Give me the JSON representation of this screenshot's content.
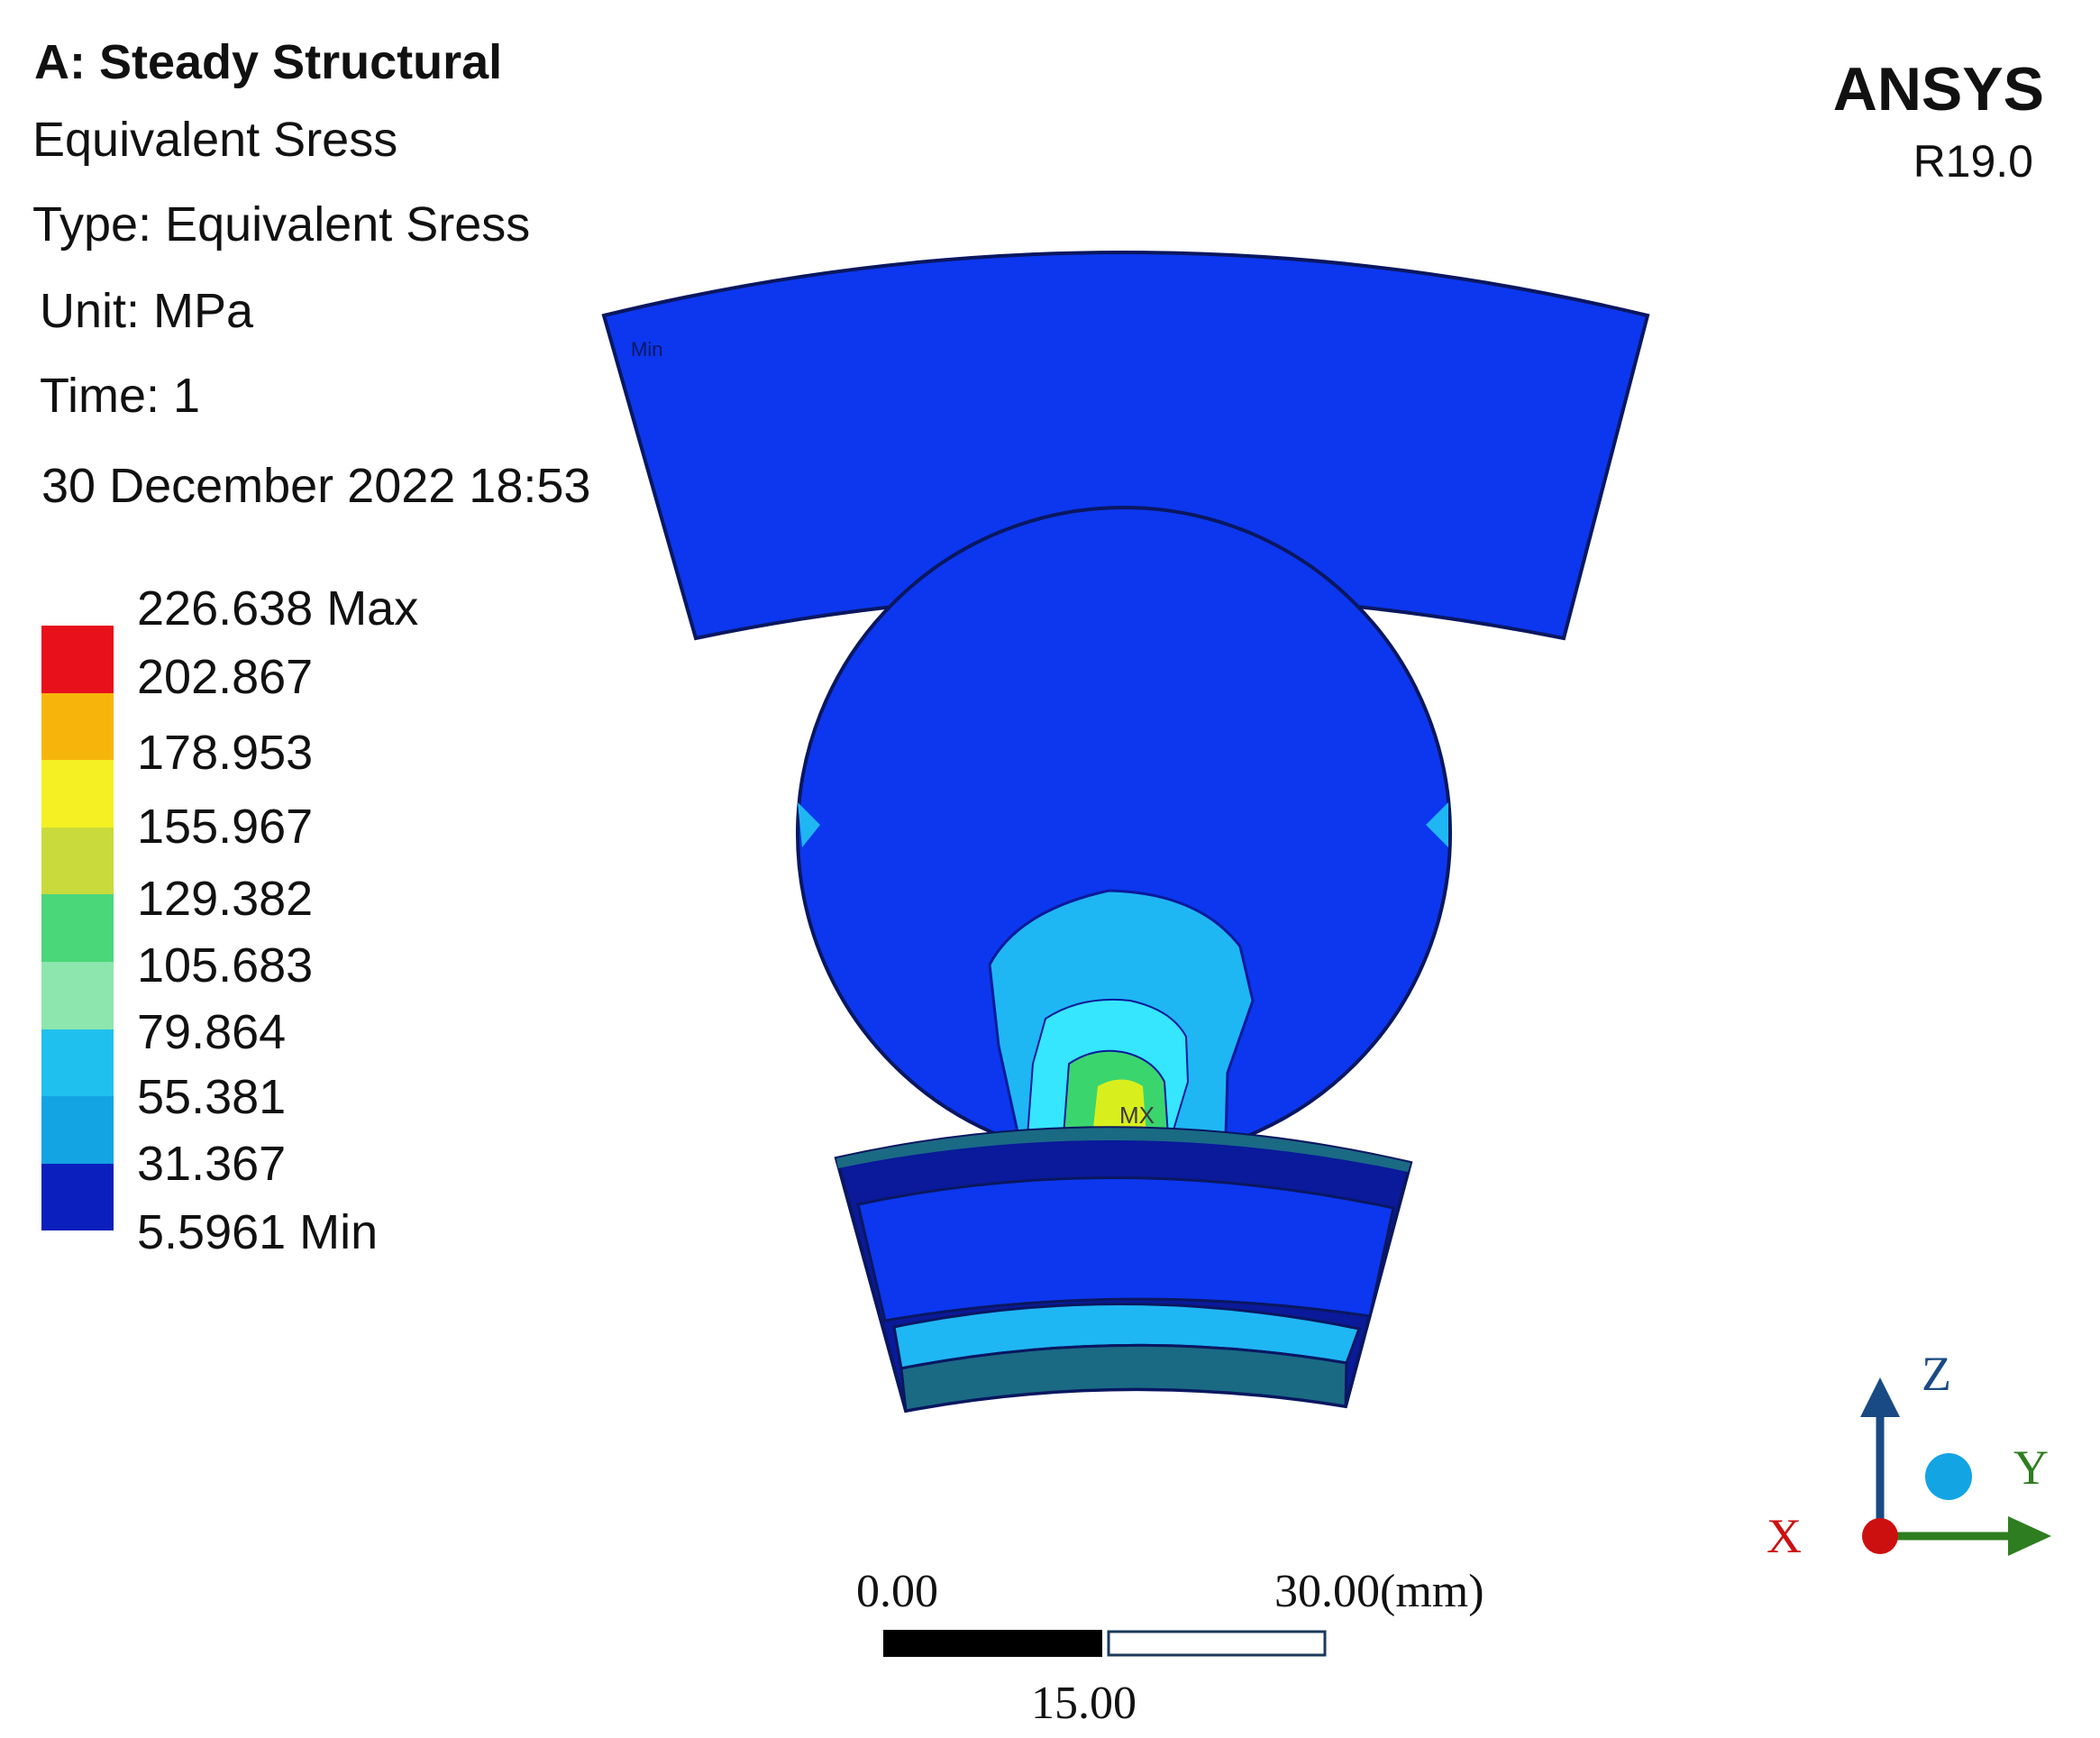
{
  "header": {
    "analysis_title": "A: Steady Structural",
    "result_name": "Equivalent Sress",
    "result_type": "Type: Equivalent Sress",
    "unit": "Unit: MPa",
    "time": "Time: 1",
    "date": "30 December 2022 18:53"
  },
  "branding": {
    "product": "ANSYS",
    "version": "R19.0"
  },
  "legend": {
    "labels": [
      "226.638 Max",
      "202.867",
      "178.953",
      "155.967",
      "129.382",
      "105.683",
      "79.864",
      "55.381",
      "31.367",
      "5.5961 Min"
    ],
    "colors": [
      "#e8101a",
      "#f7b50c",
      "#f4f023",
      "#c9db3c",
      "#4ad77a",
      "#8ce6ad",
      "#20c0ee",
      "#13a4e4",
      "#0a1fbd"
    ]
  },
  "model": {
    "min_marker": "Min",
    "max_marker": "MX",
    "colors": {
      "part_base": "#0c37ee",
      "outline": "#0a1760",
      "contour_light_blue": "#1fb6f4",
      "contour_cyan": "#36e6ff",
      "contour_green": "#3bd56e",
      "contour_yellow": "#d9ef1d",
      "dark_blue": "#0a1a9a",
      "teal": "#1a6a84"
    }
  },
  "scale_bar": {
    "left_label": "0.00",
    "right_label": "30.00(mm)",
    "mid_label": "15.00"
  },
  "triad": {
    "x_label": "X",
    "y_label": "Y",
    "z_label": "Z",
    "colors": {
      "x": "#cc1010",
      "y": "#2e7d20",
      "z": "#1a4a84"
    }
  }
}
